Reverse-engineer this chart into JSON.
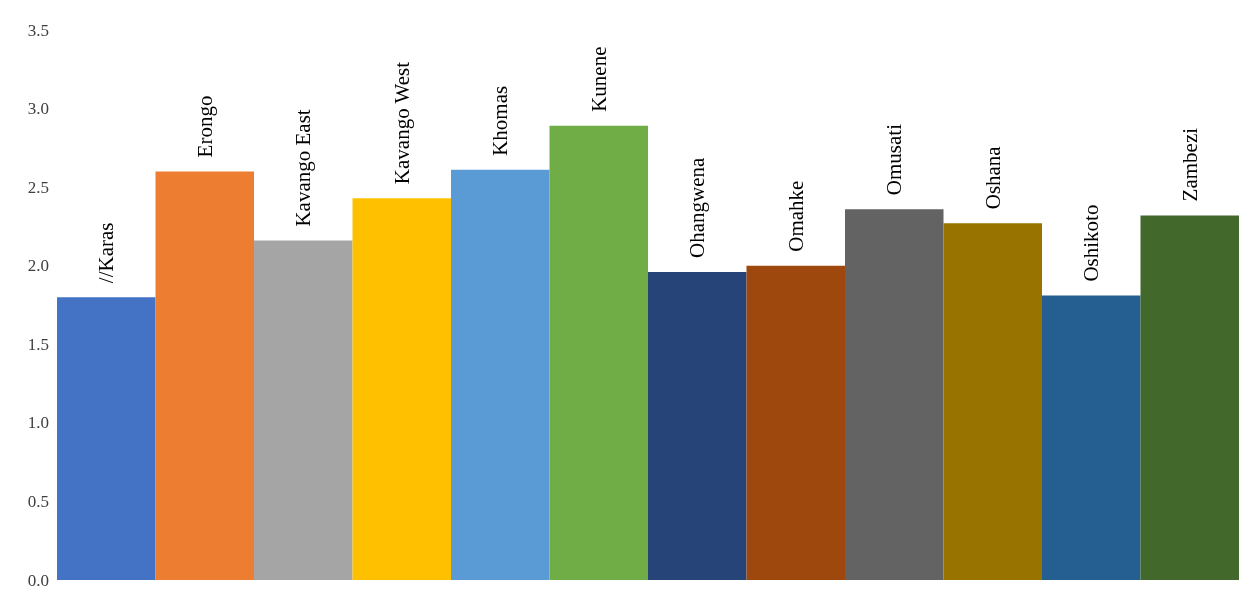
{
  "chart_data": {
    "type": "bar",
    "categories": [
      "//Karas",
      "Erongo",
      "Kavango East",
      "Kavango West",
      "Khomas",
      "Kunene",
      "Ohangwena",
      "Omahke",
      "Omusati",
      "Oshana",
      "Oshikoto",
      "Zambezi"
    ],
    "values": [
      1.8,
      2.6,
      2.16,
      2.43,
      2.61,
      2.89,
      1.96,
      2.0,
      2.36,
      2.27,
      1.81,
      2.32
    ],
    "colors": [
      "#4472c4",
      "#ed7d31",
      "#a5a5a5",
      "#ffc000",
      "#5b9bd5",
      "#70ad47",
      "#264478",
      "#9e480e",
      "#636363",
      "#997300",
      "#255e91",
      "#43682b"
    ],
    "ylim": [
      0,
      3.5
    ],
    "yticks": [
      {
        "value": 0,
        "label": "0.0"
      },
      0.5,
      {
        "value": 1,
        "label": "1.0"
      },
      1.5,
      {
        "value": 2,
        "label": "2.0"
      },
      2.5,
      {
        "value": 3,
        "label": "3.0"
      },
      3.5
    ],
    "grid": false
  }
}
